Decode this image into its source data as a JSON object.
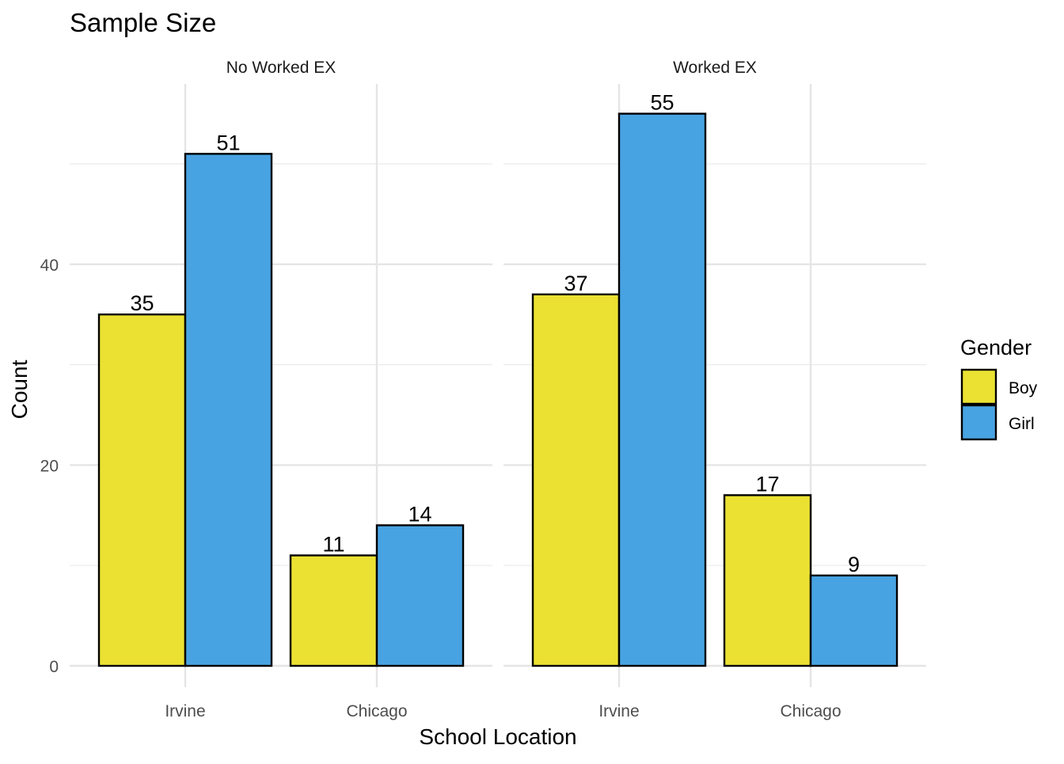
{
  "chart_data": {
    "type": "bar",
    "title": "Sample Size",
    "xlabel": "School Location",
    "ylabel": "Count",
    "ylim": [
      0,
      58
    ],
    "y_ticks": [
      0,
      20,
      40
    ],
    "categories": [
      "Irvine",
      "Chicago"
    ],
    "legend": {
      "title": "Gender",
      "placement": "right"
    },
    "series": [
      {
        "name": "Boy",
        "color": "#EBE133"
      },
      {
        "name": "Girl",
        "color": "#48A3E2"
      }
    ],
    "facets": [
      {
        "label": "No Worked EX",
        "values": {
          "Boy": [
            35,
            11
          ],
          "Girl": [
            51,
            14
          ]
        }
      },
      {
        "label": "Worked EX",
        "values": {
          "Boy": [
            37,
            17
          ],
          "Girl": [
            55,
            9
          ]
        }
      }
    ],
    "grid": true
  }
}
